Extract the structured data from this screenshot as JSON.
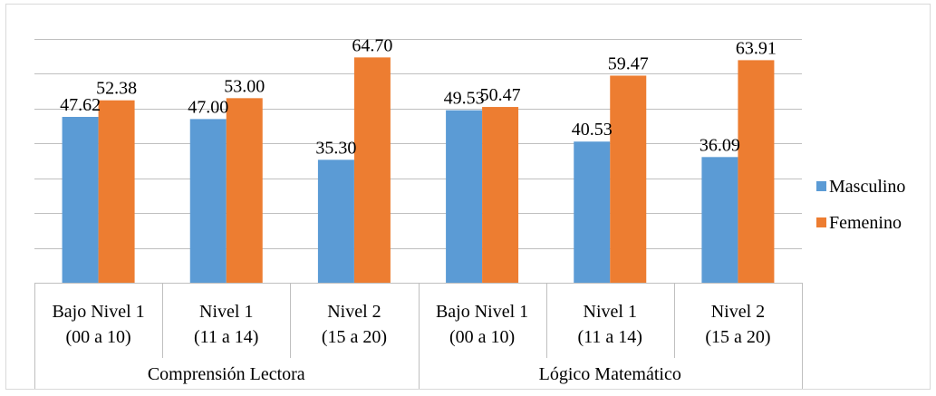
{
  "chart_data": {
    "type": "bar",
    "groups": [
      {
        "label": "Comprensión Lectora",
        "categories": [
          {
            "line1": "Bajo Nivel 1",
            "line2": "(00 a 10)"
          },
          {
            "line1": "Nivel 1",
            "line2": "(11 a 14)"
          },
          {
            "line1": "Nivel 2",
            "line2": "(15 a 20)"
          }
        ]
      },
      {
        "label": "Lógico Matemático",
        "categories": [
          {
            "line1": "Bajo Nivel 1",
            "line2": "(00 a 10)"
          },
          {
            "line1": "Nivel 1",
            "line2": "(11 a 14)"
          },
          {
            "line1": "Nivel 2",
            "line2": "(15 a 20)"
          }
        ]
      }
    ],
    "series": [
      {
        "name": "Masculino",
        "color": "#5B9BD5",
        "values": [
          47.62,
          47.0,
          35.3,
          49.53,
          40.53,
          36.09
        ],
        "labels": [
          "47.62",
          "47.00",
          "35.30",
          "49.53",
          "40.53",
          "36.09"
        ]
      },
      {
        "name": "Femenino",
        "color": "#ED7D31",
        "values": [
          52.38,
          53.0,
          64.7,
          50.47,
          59.47,
          63.91
        ],
        "labels": [
          "52.38",
          "53.00",
          "64.70",
          "50.47",
          "59.47",
          "63.91"
        ]
      }
    ],
    "ylim": [
      0,
      70
    ],
    "gridlines": [
      10,
      20,
      30,
      40,
      50,
      60,
      70
    ],
    "grid": true,
    "legend_position": "right",
    "show_y_axis_labels": false
  }
}
